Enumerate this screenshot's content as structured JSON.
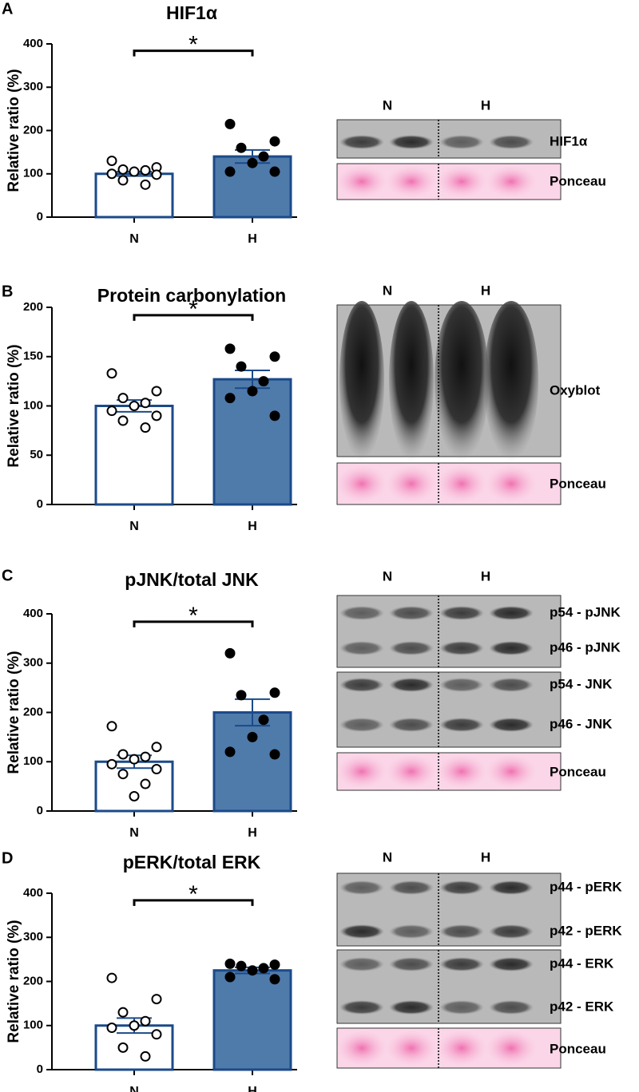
{
  "chart_data": [
    {
      "panel": "A",
      "type": "bar",
      "title": "HIF1α",
      "ylabel": "Relative ratio (%)",
      "categories": [
        "N",
        "H"
      ],
      "values": [
        100,
        140
      ],
      "errors": [
        5,
        15
      ],
      "points": [
        [
          130,
          115,
          110,
          108,
          105,
          100,
          98,
          85,
          75
        ],
        [
          215,
          175,
          160,
          140,
          125,
          105,
          105
        ]
      ],
      "colors": [
        "#ffffff",
        "#4f7bab"
      ],
      "edgecolor": "#1b4a8a",
      "point_colors": [
        "#ffffff",
        "#000000"
      ],
      "ylim": [
        0,
        400
      ],
      "yticks": [
        0,
        100,
        200,
        300,
        400
      ],
      "annotation": "*",
      "blot": {
        "lanes": [
          "N",
          "H"
        ],
        "labels": [
          "HIF1α",
          "Ponceau"
        ]
      }
    },
    {
      "panel": "B",
      "type": "bar",
      "title": "Protein carbonylation",
      "ylabel": "Relative ratio (%)",
      "categories": [
        "N",
        "H"
      ],
      "values": [
        100,
        127
      ],
      "errors": [
        6,
        9
      ],
      "points": [
        [
          133,
          115,
          108,
          103,
          100,
          95,
          90,
          85,
          78
        ],
        [
          158,
          150,
          140,
          125,
          115,
          108,
          90
        ]
      ],
      "colors": [
        "#ffffff",
        "#4f7bab"
      ],
      "edgecolor": "#1b4a8a",
      "point_colors": [
        "#ffffff",
        "#000000"
      ],
      "ylim": [
        0,
        200
      ],
      "yticks": [
        0,
        50,
        100,
        150,
        200
      ],
      "annotation": "*",
      "blot": {
        "lanes": [
          "N",
          "H"
        ],
        "labels": [
          "Oxyblot",
          "Ponceau"
        ]
      }
    },
    {
      "panel": "C",
      "type": "bar",
      "title": "pJNK/total JNK",
      "ylabel": "Relative ratio (%)",
      "categories": [
        "N",
        "H"
      ],
      "values": [
        100,
        200
      ],
      "errors": [
        13,
        27
      ],
      "points": [
        [
          172,
          130,
          115,
          110,
          105,
          95,
          85,
          75,
          55,
          30
        ],
        [
          320,
          240,
          235,
          185,
          150,
          120,
          115
        ]
      ],
      "colors": [
        "#ffffff",
        "#4f7bab"
      ],
      "edgecolor": "#1b4a8a",
      "point_colors": [
        "#ffffff",
        "#000000"
      ],
      "ylim": [
        0,
        400
      ],
      "yticks": [
        0,
        100,
        200,
        300,
        400
      ],
      "annotation": "*",
      "blot": {
        "lanes": [
          "N",
          "H"
        ],
        "labels": [
          "p54 - pJNK",
          "p46 - pJNK",
          "p54 - JNK",
          "p46 - JNK",
          "Ponceau"
        ]
      }
    },
    {
      "panel": "D",
      "type": "bar",
      "title": "pERK/total ERK",
      "ylabel": "Relative ratio (%)",
      "categories": [
        "N",
        "H"
      ],
      "values": [
        100,
        225
      ],
      "errors": [
        17,
        7
      ],
      "points": [
        [
          208,
          160,
          130,
          110,
          100,
          95,
          80,
          50,
          30
        ],
        [
          240,
          238,
          235,
          230,
          225,
          210,
          205
        ]
      ],
      "colors": [
        "#ffffff",
        "#4f7bab"
      ],
      "edgecolor": "#1b4a8a",
      "point_colors": [
        "#ffffff",
        "#000000"
      ],
      "ylim": [
        0,
        400
      ],
      "yticks": [
        0,
        100,
        200,
        300,
        400
      ],
      "annotation": "*",
      "blot": {
        "lanes": [
          "N",
          "H"
        ],
        "labels": [
          "p44 - pERK",
          "p42 - pERK",
          "p44 - ERK",
          "p42 - ERK",
          "Ponceau"
        ]
      }
    }
  ]
}
